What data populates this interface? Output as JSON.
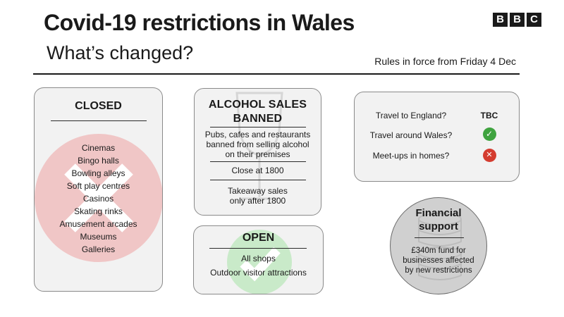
{
  "header": {
    "title": "Covid-19 restrictions in Wales",
    "subtitle": "What’s changed?",
    "rules_date": "Rules in force from Friday 4 Dec",
    "logo_letters": [
      "B",
      "B",
      "C"
    ]
  },
  "closed": {
    "title": "CLOSED",
    "items": [
      "Cinemas",
      "Bingo halls",
      "Bowling alleys",
      "Soft play centres",
      "Casinos",
      "Skating rinks",
      "Amusement arcades",
      "Museums",
      "Galleries"
    ],
    "watermark_icon": "cross-icon",
    "watermark_color": "#f0c6c6"
  },
  "alcohol": {
    "title_line1": "ALCOHOL SALES",
    "title_line2": "BANNED",
    "rules": [
      [
        "Pubs, cafes and restaurants",
        "banned from selling alcohol",
        "on their premises"
      ],
      [
        "Close at 1800"
      ],
      [
        "Takeaway sales",
        "only after 1800"
      ]
    ],
    "watermark_icon": "wine-glass-icon"
  },
  "open": {
    "title": "OPEN",
    "items": [
      "All shops",
      "Outdoor visitor attractions"
    ],
    "watermark_icon": "tick-icon",
    "watermark_color": "#c9eac9"
  },
  "travel": {
    "rows": [
      {
        "question": "Travel to England?",
        "answer": "TBC",
        "icon": "text"
      },
      {
        "question": "Travel around Wales?",
        "answer": "✓",
        "icon": "tick-icon",
        "color": "#3fa33f"
      },
      {
        "question": "Meet-ups in homes?",
        "answer": "✕",
        "icon": "cross-icon",
        "color": "#d43c2f"
      }
    ]
  },
  "financial": {
    "title_line1": "Financial",
    "title_line2": "support",
    "text_lines": [
      "£340m fund for",
      "businesses affected",
      "by new restrictions"
    ],
    "watermark_icon": "coins-icon"
  }
}
